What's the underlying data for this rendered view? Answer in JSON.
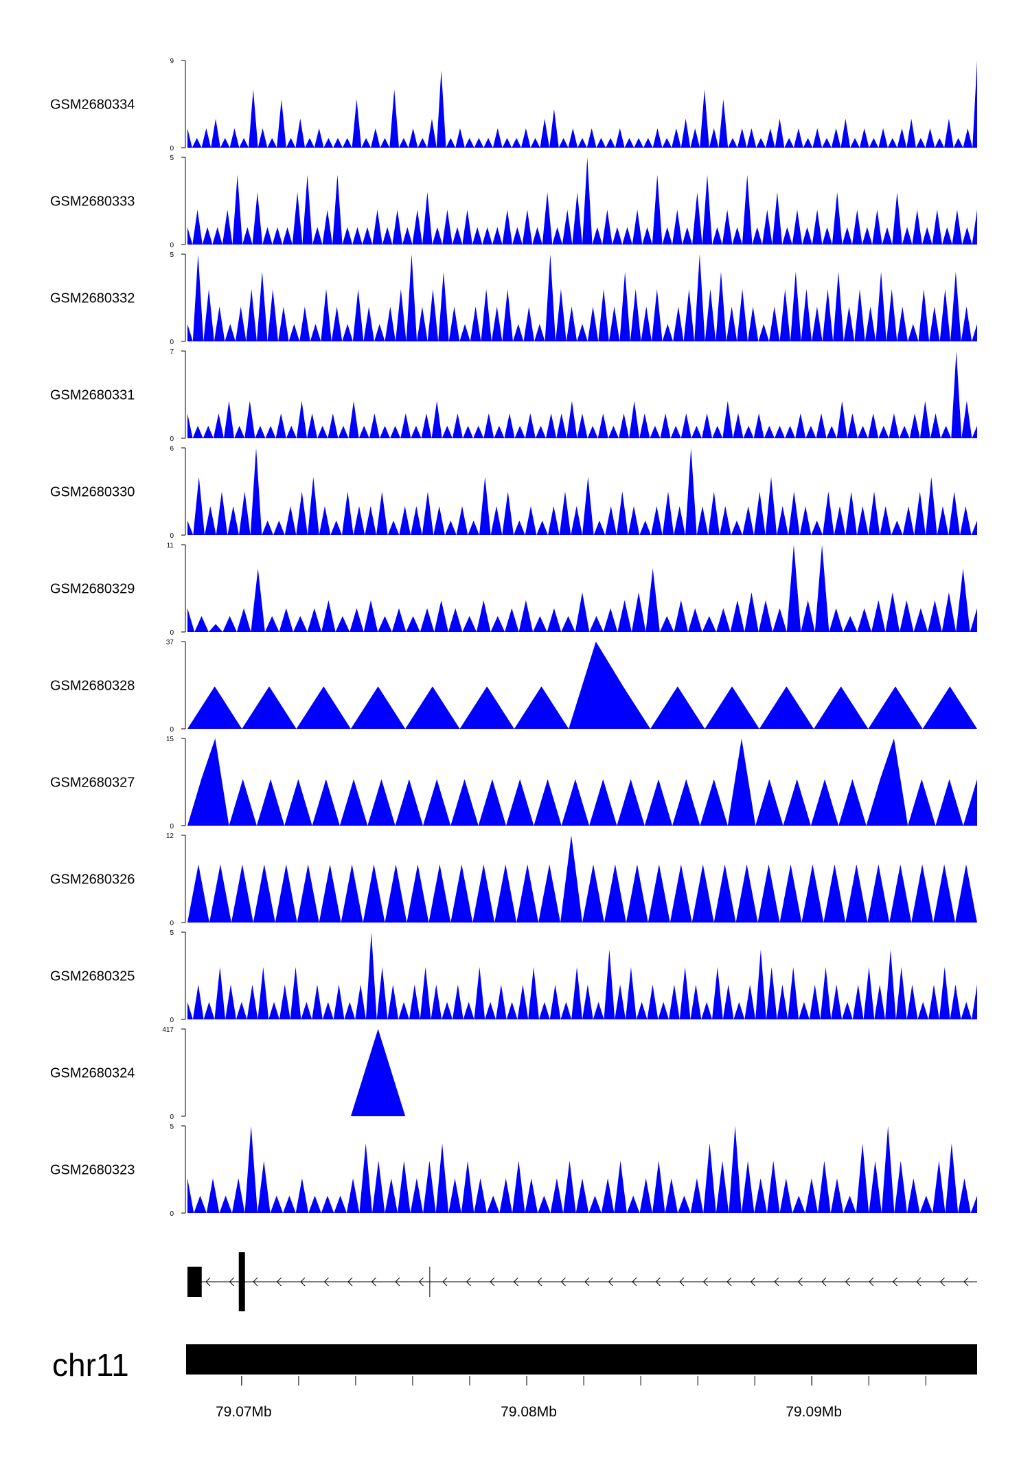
{
  "chart_data": {
    "type": "area",
    "colors": {
      "fill": "#0000ff",
      "axis": "#000000",
      "gene": "#000000"
    },
    "x_range_mb": [
      79.0681,
      79.0958
    ],
    "tracks": [
      {
        "name": "GSM2680334",
        "ymax": 9,
        "values": [
          2,
          0,
          1,
          0,
          2,
          0,
          3,
          0,
          1,
          0,
          2,
          0,
          1,
          0,
          6,
          0,
          2,
          0,
          1,
          0,
          5,
          0,
          1,
          0,
          3,
          0,
          1,
          0,
          2,
          0,
          1,
          0,
          1,
          0,
          1,
          0,
          5,
          0,
          1,
          0,
          2,
          0,
          1,
          0,
          6,
          0,
          1,
          0,
          2,
          0,
          1,
          0,
          3,
          0,
          8,
          0,
          1,
          0,
          2,
          0,
          1,
          0,
          1,
          0,
          1,
          0,
          2,
          0,
          1,
          0,
          1,
          0,
          2,
          0,
          1,
          0,
          3,
          0,
          4,
          0,
          1,
          0,
          2,
          0,
          1,
          0,
          2,
          0,
          1,
          0,
          1,
          0,
          2,
          0,
          1,
          0,
          1,
          0,
          1,
          0,
          2,
          0,
          1,
          0,
          2,
          0,
          3,
          0,
          2,
          0,
          6,
          0,
          2,
          0,
          5,
          0,
          1,
          0,
          2,
          0,
          2,
          0,
          1,
          0,
          2,
          0,
          3,
          0,
          1,
          0,
          2,
          0,
          1,
          0,
          2,
          0,
          1,
          0,
          2,
          0,
          3,
          0,
          1,
          0,
          2,
          0,
          1,
          0,
          2,
          0,
          1,
          0,
          2,
          0,
          3,
          0,
          1,
          0,
          2,
          0,
          1,
          0,
          3,
          0,
          1,
          0,
          2,
          0,
          9
        ]
      },
      {
        "name": "GSM2680333",
        "ymax": 5,
        "values": [
          1,
          0,
          2,
          0,
          1,
          0,
          1,
          0,
          2,
          0,
          4,
          0,
          1,
          0,
          3,
          0,
          1,
          0,
          1,
          0,
          1,
          0,
          3,
          0,
          4,
          0,
          1,
          0,
          2,
          0,
          4,
          0,
          1,
          0,
          1,
          0,
          1,
          0,
          2,
          0,
          1,
          0,
          2,
          0,
          1,
          0,
          2,
          0,
          3,
          0,
          1,
          0,
          2,
          0,
          1,
          0,
          2,
          0,
          1,
          0,
          1,
          0,
          1,
          0,
          2,
          0,
          1,
          0,
          2,
          0,
          1,
          0,
          3,
          0,
          1,
          0,
          2,
          0,
          3,
          0,
          5,
          0,
          1,
          0,
          2,
          0,
          1,
          0,
          1,
          0,
          2,
          0,
          1,
          0,
          4,
          0,
          1,
          0,
          2,
          0,
          1,
          0,
          3,
          0,
          4,
          0,
          1,
          0,
          2,
          0,
          1,
          0,
          4,
          0,
          1,
          0,
          2,
          0,
          3,
          0,
          1,
          0,
          2,
          0,
          1,
          0,
          2,
          0,
          1,
          0,
          3,
          0,
          1,
          0,
          2,
          0,
          1,
          0,
          2,
          0,
          1,
          0,
          3,
          0,
          1,
          0,
          2,
          0,
          1,
          0,
          2,
          0,
          1,
          0,
          2,
          0,
          1,
          0,
          2
        ]
      },
      {
        "name": "GSM2680332",
        "ymax": 5,
        "values": [
          1,
          0,
          5,
          0,
          3,
          0,
          2,
          0,
          1,
          0,
          2,
          0,
          3,
          0,
          4,
          0,
          3,
          0,
          2,
          0,
          1,
          0,
          2,
          0,
          1,
          0,
          3,
          0,
          2,
          0,
          1,
          0,
          3,
          0,
          2,
          0,
          1,
          0,
          2,
          0,
          3,
          0,
          5,
          0,
          2,
          0,
          3,
          0,
          4,
          0,
          2,
          0,
          1,
          0,
          2,
          0,
          3,
          0,
          2,
          0,
          3,
          0,
          1,
          0,
          2,
          0,
          1,
          0,
          5,
          0,
          3,
          0,
          2,
          0,
          1,
          0,
          2,
          0,
          3,
          0,
          2,
          0,
          4,
          0,
          3,
          0,
          2,
          0,
          3,
          0,
          1,
          0,
          2,
          0,
          3,
          0,
          5,
          0,
          3,
          0,
          4,
          0,
          2,
          0,
          3,
          0,
          2,
          0,
          1,
          0,
          2,
          0,
          3,
          0,
          4,
          0,
          3,
          0,
          2,
          0,
          3,
          0,
          4,
          0,
          2,
          0,
          3,
          0,
          2,
          0,
          4,
          0,
          3,
          0,
          2,
          0,
          1,
          0,
          3,
          0,
          2,
          0,
          3,
          0,
          4,
          0,
          2,
          0,
          1
        ]
      },
      {
        "name": "GSM2680331",
        "ymax": 7,
        "values": [
          2,
          0,
          1,
          0,
          1,
          0,
          2,
          0,
          3,
          0,
          1,
          0,
          3,
          0,
          1,
          0,
          1,
          0,
          2,
          0,
          1,
          0,
          3,
          0,
          2,
          0,
          1,
          0,
          2,
          0,
          1,
          0,
          3,
          0,
          1,
          0,
          2,
          0,
          1,
          0,
          1,
          0,
          2,
          0,
          1,
          0,
          2,
          0,
          3,
          0,
          1,
          0,
          2,
          0,
          1,
          0,
          1,
          0,
          2,
          0,
          1,
          0,
          2,
          0,
          1,
          0,
          2,
          0,
          1,
          0,
          2,
          0,
          2,
          0,
          3,
          0,
          2,
          0,
          1,
          0,
          2,
          0,
          1,
          0,
          2,
          0,
          3,
          0,
          2,
          0,
          1,
          0,
          2,
          0,
          1,
          0,
          2,
          0,
          1,
          0,
          2,
          0,
          1,
          0,
          3,
          0,
          2,
          0,
          1,
          0,
          2,
          0,
          1,
          0,
          1,
          0,
          1,
          0,
          2,
          0,
          1,
          0,
          2,
          0,
          1,
          0,
          3,
          0,
          2,
          0,
          1,
          0,
          2,
          0,
          1,
          0,
          2,
          0,
          1,
          0,
          2,
          0,
          3,
          0,
          2,
          0,
          1,
          0,
          7,
          0,
          3,
          0,
          1
        ]
      },
      {
        "name": "GSM2680330",
        "ymax": 6,
        "values": [
          1,
          0,
          4,
          0,
          2,
          0,
          3,
          0,
          2,
          0,
          3,
          0,
          6,
          0,
          1,
          0,
          1,
          0,
          2,
          0,
          3,
          0,
          4,
          0,
          2,
          0,
          1,
          0,
          3,
          0,
          2,
          0,
          2,
          0,
          3,
          0,
          1,
          0,
          2,
          0,
          2,
          0,
          3,
          0,
          2,
          0,
          1,
          0,
          2,
          0,
          1,
          0,
          4,
          0,
          2,
          0,
          3,
          0,
          1,
          0,
          2,
          0,
          1,
          0,
          2,
          0,
          3,
          0,
          2,
          0,
          4,
          0,
          1,
          0,
          2,
          0,
          3,
          0,
          2,
          0,
          1,
          0,
          2,
          0,
          3,
          0,
          2,
          0,
          6,
          0,
          2,
          0,
          3,
          0,
          2,
          0,
          1,
          0,
          2,
          0,
          3,
          0,
          4,
          0,
          2,
          0,
          3,
          0,
          2,
          0,
          1,
          0,
          3,
          0,
          2,
          0,
          3,
          0,
          2,
          0,
          3,
          0,
          2,
          0,
          1,
          0,
          2,
          0,
          3,
          0,
          4,
          0,
          2,
          0,
          3,
          0,
          2,
          0,
          1
        ]
      },
      {
        "name": "GSM2680329",
        "ymax": 11,
        "values": [
          3,
          0,
          2,
          0,
          1,
          0,
          2,
          0,
          3,
          0,
          8,
          0,
          2,
          0,
          3,
          0,
          2,
          0,
          3,
          0,
          4,
          0,
          2,
          0,
          3,
          0,
          4,
          0,
          2,
          0,
          3,
          0,
          2,
          0,
          3,
          0,
          4,
          0,
          3,
          0,
          2,
          0,
          4,
          0,
          2,
          0,
          3,
          0,
          4,
          0,
          2,
          0,
          3,
          0,
          2,
          0,
          5,
          0,
          2,
          0,
          3,
          0,
          4,
          0,
          5,
          0,
          8,
          0,
          2,
          0,
          4,
          0,
          3,
          0,
          2,
          0,
          3,
          0,
          4,
          0,
          5,
          0,
          4,
          0,
          3,
          0,
          11,
          0,
          4,
          0,
          11,
          0,
          3,
          0,
          2,
          0,
          3,
          0,
          4,
          0,
          5,
          0,
          4,
          0,
          3,
          0,
          4,
          0,
          5,
          0,
          8,
          0,
          3
        ]
      },
      {
        "name": "GSM2680328",
        "ymax": 37,
        "values": [
          0,
          18,
          0,
          18,
          0,
          18,
          0,
          18,
          0,
          18,
          0,
          18,
          0,
          18,
          0,
          37,
          18,
          0,
          18,
          0,
          18,
          0,
          18,
          0,
          18,
          0,
          18,
          0,
          18,
          0
        ]
      },
      {
        "name": "GSM2680327",
        "ymax": 15,
        "values": [
          0,
          8,
          15,
          0,
          8,
          0,
          8,
          0,
          8,
          0,
          8,
          0,
          8,
          0,
          8,
          0,
          8,
          0,
          8,
          0,
          8,
          0,
          8,
          0,
          8,
          0,
          8,
          0,
          8,
          0,
          8,
          0,
          8,
          0,
          8,
          0,
          8,
          0,
          8,
          0,
          15,
          0,
          8,
          0,
          8,
          0,
          8,
          0,
          8,
          0,
          8,
          15,
          0,
          8,
          0,
          8,
          0,
          8
        ]
      },
      {
        "name": "GSM2680326",
        "ymax": 12,
        "values": [
          0,
          8,
          0,
          8,
          0,
          8,
          0,
          8,
          0,
          8,
          0,
          8,
          0,
          8,
          0,
          8,
          0,
          8,
          0,
          8,
          0,
          8,
          0,
          8,
          0,
          8,
          0,
          8,
          0,
          8,
          0,
          8,
          0,
          8,
          0,
          12,
          0,
          8,
          0,
          8,
          0,
          8,
          0,
          8,
          0,
          8,
          0,
          8,
          0,
          8,
          0,
          8,
          0,
          8,
          0,
          8,
          0,
          8,
          0,
          8,
          0,
          8,
          0,
          8,
          0,
          8,
          0,
          8,
          0,
          8,
          0,
          8,
          0
        ]
      },
      {
        "name": "GSM2680325",
        "ymax": 5,
        "values": [
          1,
          0,
          2,
          0,
          1,
          0,
          3,
          0,
          2,
          0,
          1,
          0,
          2,
          0,
          3,
          0,
          1,
          0,
          2,
          0,
          3,
          0,
          1,
          0,
          2,
          0,
          1,
          0,
          2,
          0,
          1,
          0,
          2,
          0,
          5,
          0,
          3,
          0,
          2,
          0,
          1,
          0,
          2,
          0,
          3,
          0,
          2,
          0,
          1,
          0,
          2,
          0,
          1,
          0,
          3,
          0,
          1,
          0,
          2,
          0,
          1,
          0,
          2,
          0,
          3,
          0,
          1,
          0,
          2,
          0,
          1,
          0,
          3,
          0,
          2,
          0,
          1,
          0,
          4,
          0,
          2,
          0,
          3,
          0,
          1,
          0,
          2,
          0,
          1,
          0,
          2,
          0,
          3,
          0,
          2,
          0,
          1,
          0,
          3,
          0,
          2,
          0,
          1,
          0,
          2,
          0,
          4,
          0,
          3,
          0,
          2,
          0,
          3,
          0,
          1,
          0,
          2,
          0,
          3,
          0,
          2,
          0,
          1,
          0,
          2,
          0,
          3,
          0,
          2,
          0,
          4,
          0,
          3,
          0,
          2,
          0,
          1,
          0,
          2,
          0,
          3,
          0,
          2,
          0,
          1,
          0,
          2
        ]
      },
      {
        "name": "GSM2680324",
        "ymax": 417,
        "values": [
          0,
          0,
          0,
          0,
          0,
          0,
          0,
          417,
          0,
          0,
          0,
          0,
          0,
          0,
          0,
          0,
          0,
          0,
          0,
          0,
          0,
          0,
          0,
          0,
          0,
          0,
          0,
          0,
          0,
          0
        ]
      },
      {
        "name": "GSM2680323",
        "ymax": 5,
        "values": [
          2,
          0,
          1,
          0,
          2,
          0,
          1,
          0,
          2,
          0,
          5,
          0,
          3,
          0,
          1,
          0,
          1,
          0,
          2,
          0,
          1,
          0,
          1,
          0,
          1,
          0,
          2,
          0,
          4,
          0,
          3,
          0,
          2,
          0,
          3,
          0,
          2,
          0,
          3,
          0,
          4,
          0,
          2,
          0,
          3,
          0,
          2,
          0,
          1,
          0,
          2,
          0,
          3,
          0,
          2,
          0,
          1,
          0,
          2,
          0,
          3,
          0,
          2,
          0,
          1,
          0,
          2,
          0,
          3,
          0,
          1,
          0,
          2,
          0,
          3,
          0,
          2,
          0,
          1,
          0,
          2,
          0,
          4,
          0,
          3,
          0,
          5,
          0,
          3,
          0,
          2,
          0,
          3,
          0,
          2,
          0,
          1,
          0,
          2,
          0,
          3,
          0,
          2,
          0,
          1,
          0,
          4,
          0,
          3,
          0,
          5,
          0,
          3,
          0,
          2,
          0,
          1,
          0,
          3,
          0,
          4,
          0,
          2,
          0,
          1
        ]
      }
    ],
    "gene_model": {
      "strand": "-",
      "exons_mb": [
        [
          79.0681,
          79.0686
        ],
        [
          79.0699,
          79.0701
        ]
      ],
      "intron_marks_mb": [
        79.0766
      ]
    },
    "chromosome": "chr11",
    "x_ticks": [
      {
        "value": 79.07,
        "label": "79.07Mb"
      },
      {
        "value": 79.08,
        "label": "79.08Mb"
      },
      {
        "value": 79.09,
        "label": "79.09Mb"
      }
    ]
  }
}
